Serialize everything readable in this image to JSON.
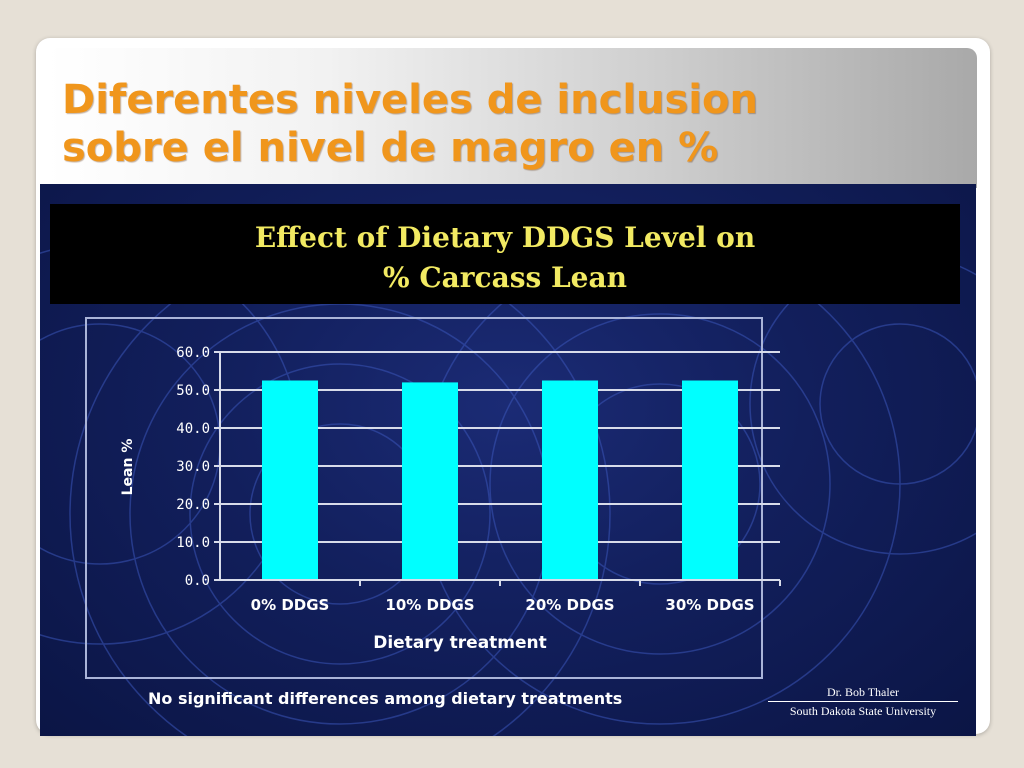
{
  "slide": {
    "title_line1": "Diferentes niveles de inclusion",
    "title_line2": "sobre el nivel de magro en %",
    "accent_color": "#f0961c"
  },
  "chart_data": {
    "type": "bar",
    "title": "Effect of Dietary DDGS Level on",
    "subtitle": "% Carcass Lean",
    "categories": [
      "0% DDGS",
      "10% DDGS",
      "20% DDGS",
      "30% DDGS"
    ],
    "values": [
      52.5,
      52.0,
      52.5,
      52.5
    ],
    "xlabel": "Dietary treatment",
    "ylabel": "Lean %",
    "ylim": [
      0,
      60
    ],
    "yticks": [
      "60.0",
      "50.0",
      "40.0",
      "30.0",
      "20.0",
      "10.0",
      "0.0"
    ],
    "grid": true,
    "bar_color": "#00ffff",
    "title_color": "#f2ea62"
  },
  "footnote": "No significant differences among dietary treatments",
  "credit": {
    "name": "Dr. Bob Thaler",
    "organization": "South Dakota State University"
  }
}
